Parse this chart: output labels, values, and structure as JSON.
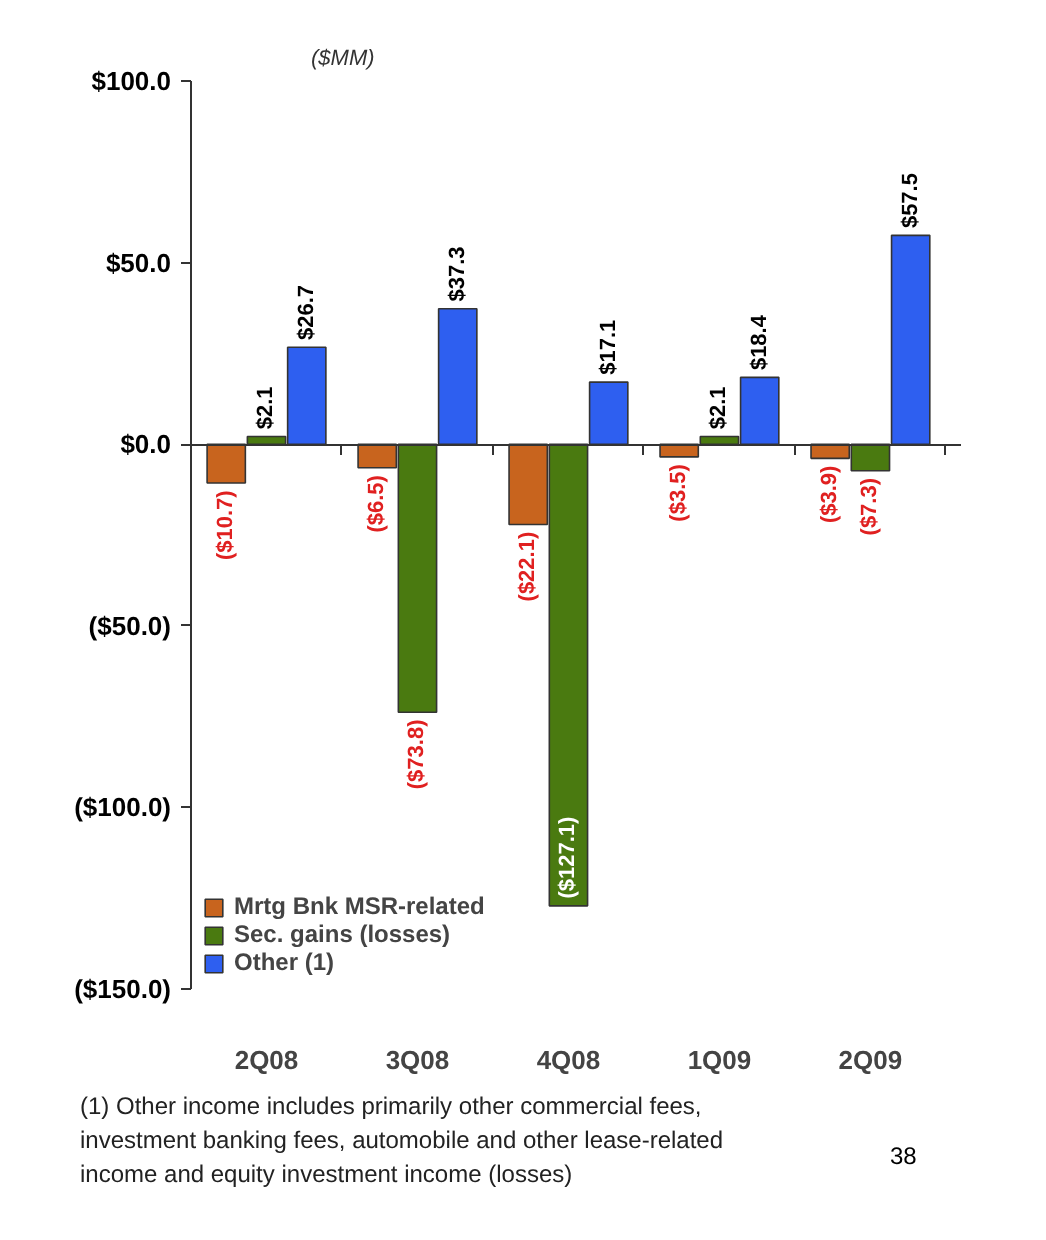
{
  "chart_data": {
    "type": "bar",
    "ylabel": "($MM)",
    "categories": [
      "2Q08",
      "3Q08",
      "4Q08",
      "1Q09",
      "2Q09"
    ],
    "series": [
      {
        "name": "Mrtg Bnk MSR-related",
        "color": "#c8641e",
        "values": [
          -10.7,
          -6.5,
          -22.1,
          -3.5,
          -3.9
        ],
        "value_labels": [
          "($10.7)",
          "($6.5)",
          "($22.1)",
          "($3.5)",
          "($3.9)"
        ]
      },
      {
        "name": "Sec. gains (losses)",
        "color": "#4a7a10",
        "values": [
          2.1,
          -73.8,
          -127.1,
          2.1,
          -7.3
        ],
        "value_labels": [
          "$2.1",
          "($73.8)",
          "($127.1)",
          "$2.1",
          "($7.3)"
        ]
      },
      {
        "name": "Other (1)",
        "color": "#2e5ff0",
        "values": [
          26.7,
          37.3,
          17.1,
          18.4,
          57.5
        ],
        "value_labels": [
          "$26.7",
          "$37.3",
          "$17.1",
          "$18.4",
          "$57.5"
        ]
      }
    ],
    "ylim": [
      -150,
      100
    ],
    "yticks": [
      {
        "value": 100,
        "label": "$100.0"
      },
      {
        "value": 50,
        "label": "$50.0"
      },
      {
        "value": 0,
        "label": "$0.0"
      },
      {
        "value": -50,
        "label": "($50.0)"
      },
      {
        "value": -100,
        "label": "($100.0)"
      },
      {
        "value": -150,
        "label": "($150.0)"
      }
    ],
    "legend": "bottom left",
    "annotations": [
      "(1)  Other income includes primarily other commercial fees, investment banking fees, automobile and other lease-related income and equity investment income (losses)",
      "38"
    ]
  }
}
